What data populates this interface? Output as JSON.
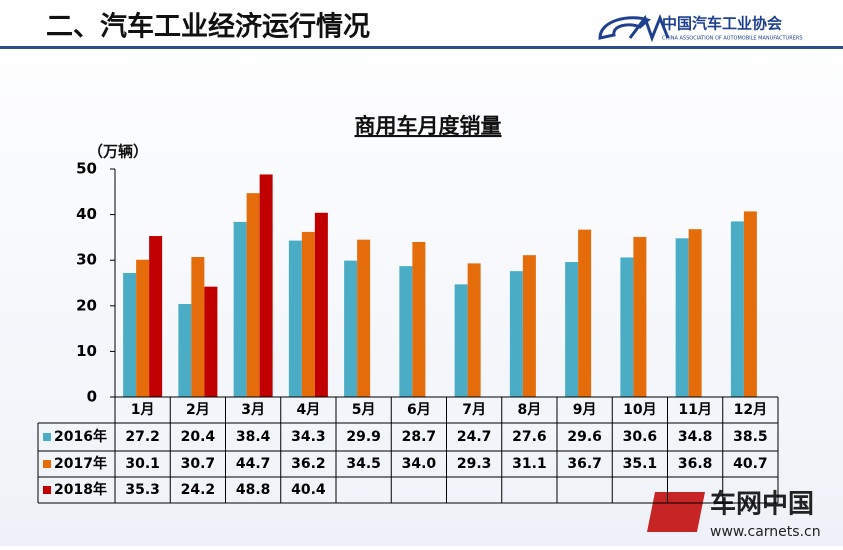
{
  "header": {
    "title": "二、汽车工业经济运行情况",
    "org_name": "中国汽车工业协会",
    "org_name_en": "CHINA ASSOCIATION OF AUTOMOBILE MANUFACTURERS"
  },
  "watermark": {
    "name": "车网中国",
    "url": "www.carnets.cn"
  },
  "chart_data": {
    "type": "bar",
    "title": "商用车月度销量",
    "y_label": "（万辆）",
    "categories": [
      "1月",
      "2月",
      "3月",
      "4月",
      "5月",
      "6月",
      "7月",
      "8月",
      "9月",
      "10月",
      "11月",
      "12月"
    ],
    "series": [
      {
        "name": "2016年",
        "color": "#4bacc6",
        "values": [
          27.2,
          20.4,
          38.4,
          34.3,
          29.9,
          28.7,
          24.7,
          27.6,
          29.6,
          30.6,
          34.8,
          38.5
        ]
      },
      {
        "name": "2017年",
        "color": "#e46c0a",
        "values": [
          30.1,
          30.7,
          44.7,
          36.2,
          34.5,
          34.0,
          29.3,
          31.1,
          36.7,
          35.1,
          36.8,
          40.7
        ],
        "value_labels": [
          "30.1",
          "30.7",
          "44.7",
          "36.2",
          "34.5",
          "34.0",
          "29.3",
          "31.1",
          "36.7",
          "35.1",
          "36.8",
          "40.7"
        ]
      },
      {
        "name": "2018年",
        "color": "#c00000",
        "values": [
          35.3,
          24.2,
          48.8,
          40.4,
          null,
          null,
          null,
          null,
          null,
          null,
          null,
          null
        ]
      }
    ],
    "ylim": [
      0,
      50
    ],
    "yticks": [
      0,
      10,
      20,
      30,
      40,
      50
    ],
    "grid": false,
    "data_table": true
  }
}
